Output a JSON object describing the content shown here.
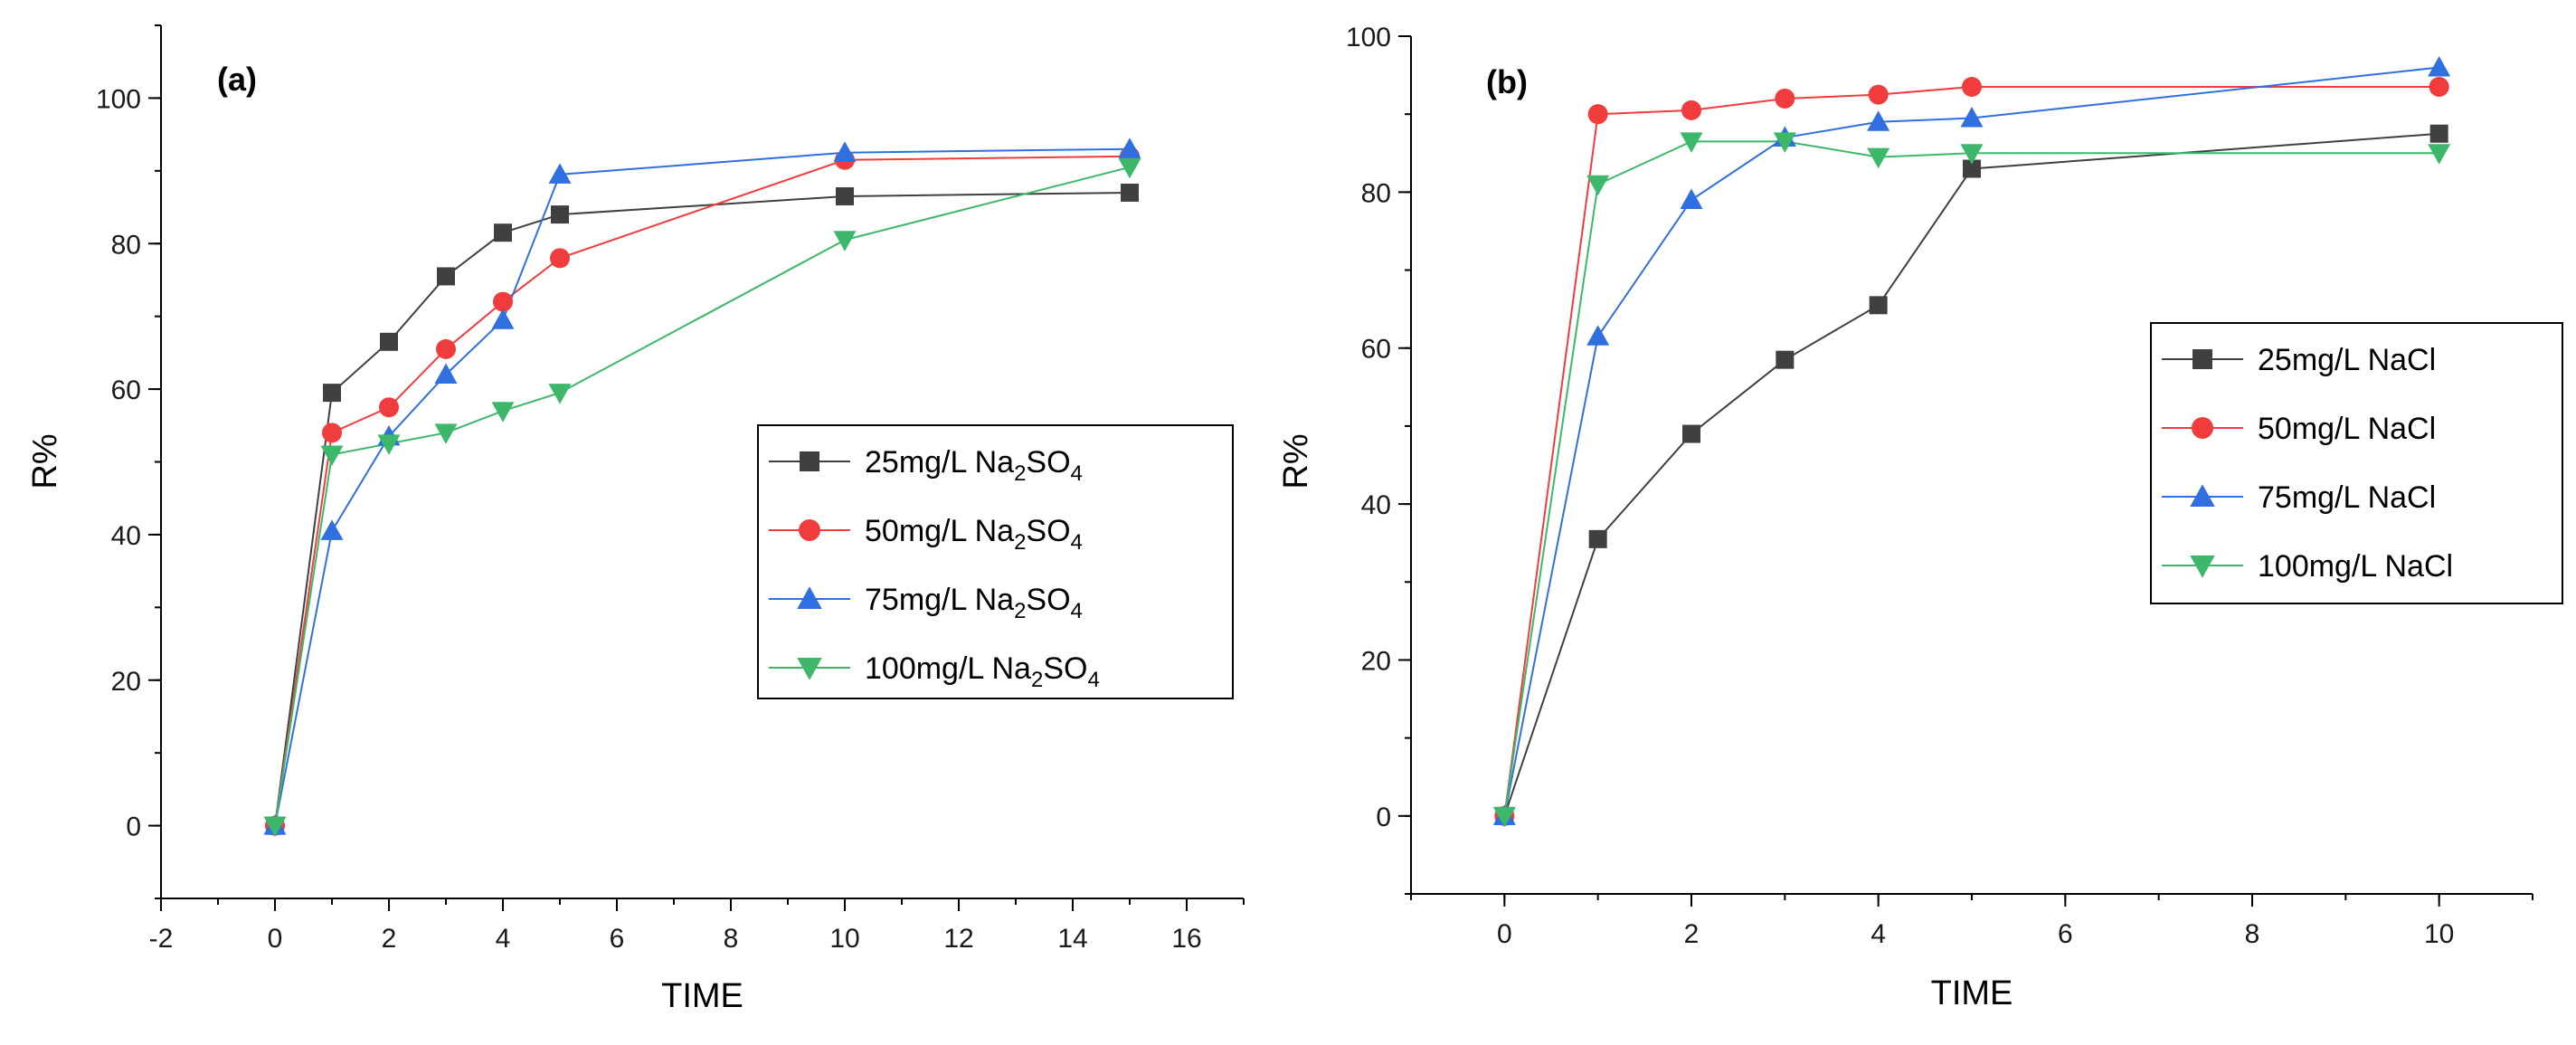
{
  "chart_data": [
    {
      "type": "line",
      "panel_label": "(a)",
      "xlabel": "TIME",
      "ylabel": "R%",
      "xlim": [
        -2,
        17
      ],
      "ylim": [
        -10,
        110
      ],
      "xticks": [
        -2,
        0,
        2,
        4,
        6,
        8,
        10,
        12,
        14,
        16
      ],
      "yticks": [
        0,
        20,
        40,
        60,
        80,
        100
      ],
      "legend_position": "center-right",
      "series": [
        {
          "name_main": "25mg/L Na",
          "sub1": "2",
          "mid": "SO",
          "sub2": "4",
          "name": "25mg/L Na2SO4",
          "color": "#404040",
          "marker": "square",
          "x": [
            0,
            1,
            2,
            3,
            4,
            5,
            10,
            15
          ],
          "y": [
            0,
            59.5,
            66.5,
            75.5,
            81.5,
            84,
            86.5,
            87
          ]
        },
        {
          "name_main": "50mg/L Na",
          "sub1": "2",
          "mid": "SO",
          "sub2": "4",
          "name": "50mg/L Na2SO4",
          "color": "#f03c3c",
          "marker": "circle",
          "x": [
            0,
            1,
            2,
            3,
            4,
            5,
            10,
            15
          ],
          "y": [
            0,
            54,
            57.5,
            65.5,
            72,
            78,
            91.5,
            92
          ]
        },
        {
          "name_main": "75mg/L Na",
          "sub1": "2",
          "mid": "SO",
          "sub2": "4",
          "name": "75mg/L Na2SO4",
          "color": "#2f6fe0",
          "marker": "triangle-up",
          "x": [
            0,
            1,
            2,
            3,
            4,
            5,
            10,
            15
          ],
          "y": [
            0,
            40.5,
            53.5,
            62,
            69.5,
            89.5,
            92.5,
            93
          ]
        },
        {
          "name_main": "100mg/L Na",
          "sub1": "2",
          "mid": "SO",
          "sub2": "4",
          "name": "100mg/L Na2SO4",
          "color": "#3db86b",
          "marker": "triangle-down",
          "x": [
            0,
            1,
            2,
            3,
            4,
            5,
            10,
            15
          ],
          "y": [
            0,
            51,
            52.5,
            54,
            57,
            59.5,
            80.5,
            90.5
          ]
        }
      ]
    },
    {
      "type": "line",
      "panel_label": "(b)",
      "xlabel": "TIME",
      "ylabel": "R%",
      "xlim": [
        -1,
        11
      ],
      "ylim": [
        -10,
        100
      ],
      "xticks": [
        0,
        2,
        4,
        6,
        8,
        10
      ],
      "yticks": [
        0,
        20,
        40,
        60,
        80,
        100
      ],
      "legend_position": "center-right",
      "series": [
        {
          "name": "25mg/L NaCl",
          "color": "#404040",
          "marker": "square",
          "x": [
            0,
            1,
            2,
            3,
            4,
            5,
            10
          ],
          "y": [
            0,
            35.5,
            49,
            58.5,
            65.5,
            83,
            87.5
          ]
        },
        {
          "name": "50mg/L NaCl",
          "color": "#f03c3c",
          "marker": "circle",
          "x": [
            0,
            1,
            2,
            3,
            4,
            5,
            10
          ],
          "y": [
            0,
            90,
            90.5,
            92,
            92.5,
            93.5,
            93.5
          ]
        },
        {
          "name": "75mg/L NaCl",
          "color": "#2f6fe0",
          "marker": "triangle-up",
          "x": [
            0,
            1,
            2,
            3,
            4,
            5,
            10
          ],
          "y": [
            0,
            61.5,
            79,
            87,
            89,
            89.5,
            96
          ]
        },
        {
          "name": "100mg/L NaCl",
          "color": "#3db86b",
          "marker": "triangle-down",
          "x": [
            0,
            1,
            2,
            3,
            4,
            5,
            10
          ],
          "y": [
            0,
            81,
            86.5,
            86.5,
            84.5,
            85,
            85
          ]
        }
      ]
    }
  ]
}
